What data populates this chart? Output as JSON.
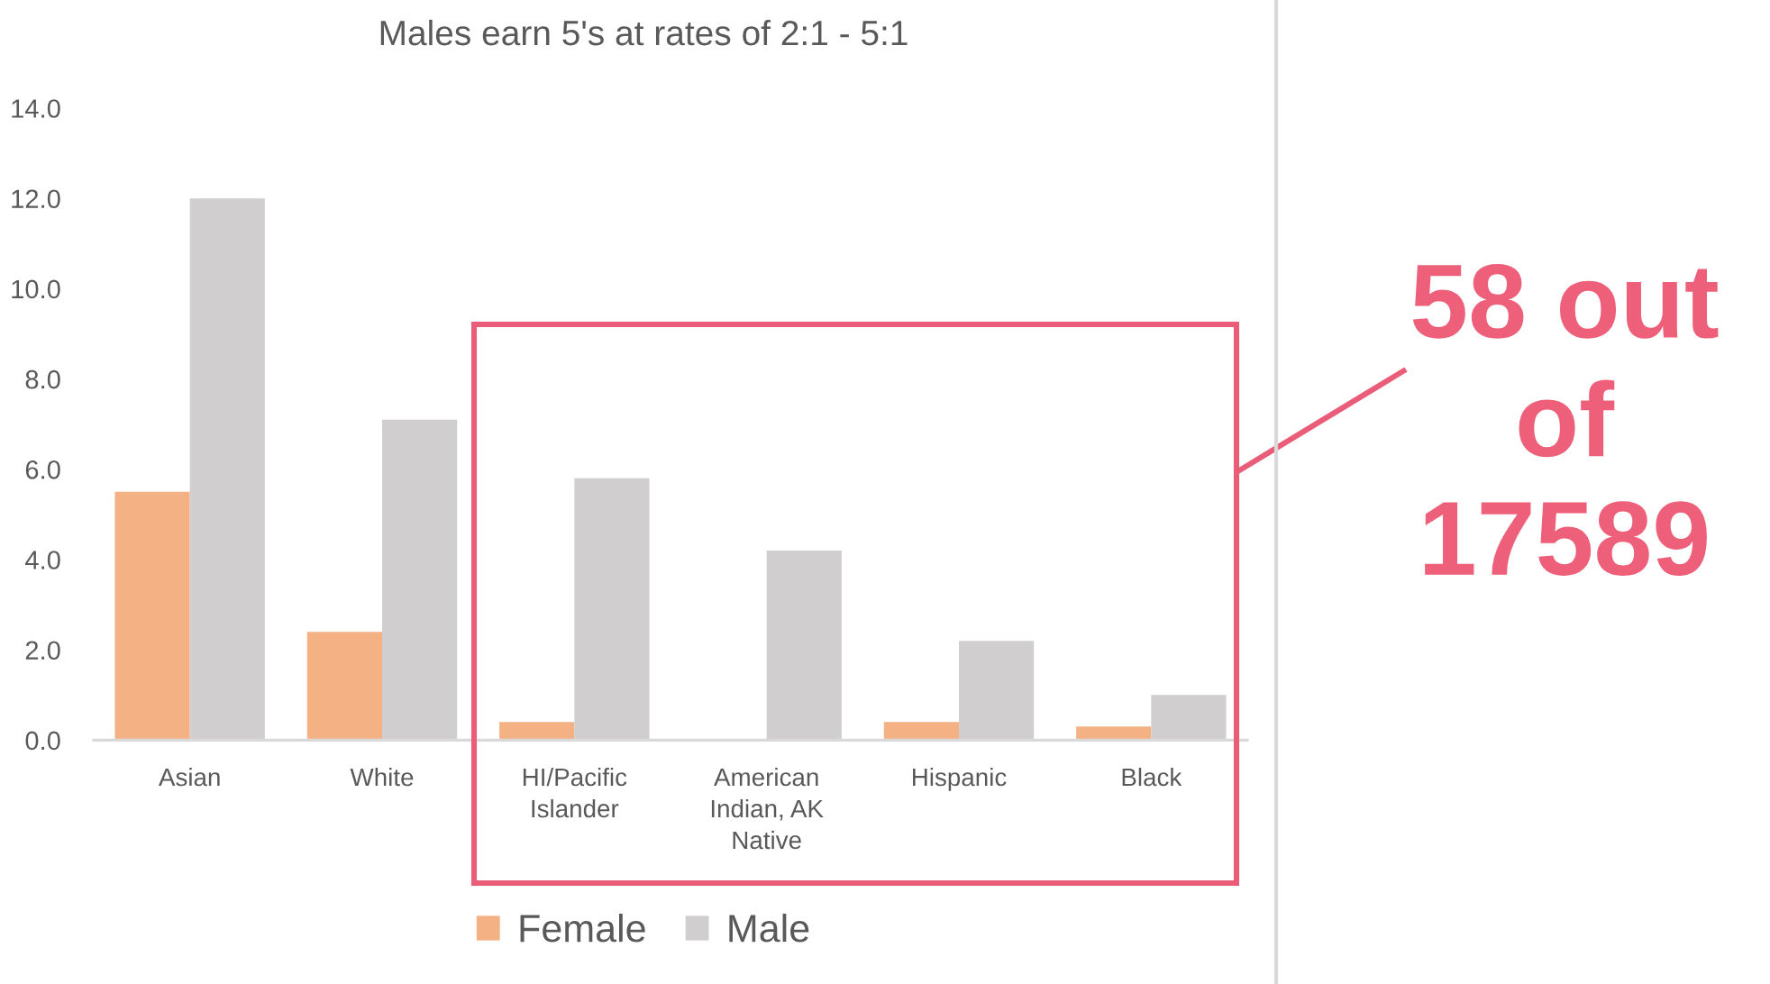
{
  "chart_data": {
    "type": "bar",
    "title": "Males earn 5's at rates of 2:1 - 5:1",
    "categories": [
      "Asian",
      "White",
      "HI/Pacific\nIslander",
      "American\nIndian, AK\nNative",
      "Hispanic",
      "Black"
    ],
    "series": [
      {
        "name": "Female",
        "color": "#f4b183",
        "values": [
          5.5,
          2.4,
          0.4,
          0,
          0.4,
          0.3
        ]
      },
      {
        "name": "Male",
        "color": "#d0cece",
        "values": [
          12.0,
          7.1,
          5.8,
          4.2,
          2.2,
          1.0
        ]
      }
    ],
    "ylim": [
      0,
      14
    ],
    "yticks": [
      {
        "value": 0,
        "label": "0.0"
      },
      {
        "value": 2,
        "label": "2.0"
      },
      {
        "value": 4,
        "label": "4.0"
      },
      {
        "value": 6,
        "label": "6.0"
      },
      {
        "value": 8,
        "label": "8.0"
      },
      {
        "value": 10,
        "label": "10.0"
      },
      {
        "value": 12,
        "label": "12.0"
      },
      {
        "value": 14,
        "label": "14.0"
      }
    ],
    "legend": "bottom",
    "annotations": [
      "58 out\nof\n17589"
    ]
  }
}
